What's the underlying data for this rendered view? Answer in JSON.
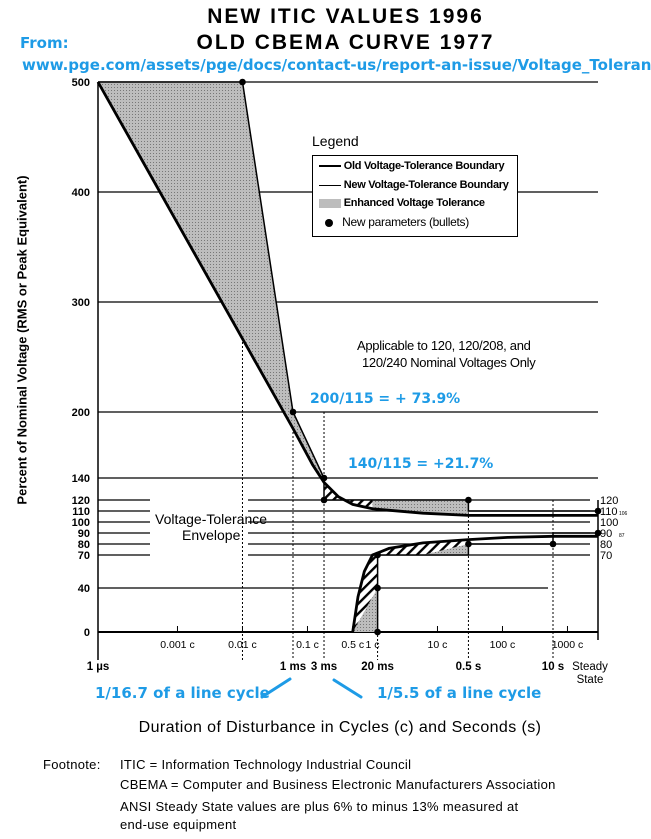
{
  "header": {
    "title_line1": "NEW ITIC VALUES 1996",
    "title_line2": "OLD CBEMA CURVE 1977",
    "from_label": "From:",
    "source_url": "www.pge.com/assets/pge/docs/contact-us/report-an-issue/Voltage_Tolerance"
  },
  "chart_data": {
    "type": "line",
    "title": "NEW ITIC VALUES 1996 / OLD CBEMA CURVE 1977",
    "xlabel": "Duration of Disturbance in Cycles (c) and Seconds (s)",
    "ylabel": "Percent of Nominal Voltage (RMS or Peak Equivalent)",
    "x_scale": "log",
    "ylim": [
      0,
      500
    ],
    "y_ticks": [
      0,
      40,
      70,
      80,
      90,
      100,
      110,
      120,
      140,
      200,
      300,
      400,
      500
    ],
    "right_ticks": [
      {
        "v": 120,
        "label": "120",
        "sub": ""
      },
      {
        "v": 110,
        "label": "110",
        "sub": "106"
      },
      {
        "v": 100,
        "label": "100",
        "sub": ""
      },
      {
        "v": 90,
        "label": "90",
        "sub": "87"
      },
      {
        "v": 80,
        "label": "80",
        "sub": ""
      },
      {
        "v": 70,
        "label": "70",
        "sub": ""
      }
    ],
    "time_ticks": [
      {
        "t": 1e-06,
        "label": "1 µs"
      },
      {
        "t": 0.001,
        "label": "1 ms"
      },
      {
        "t": 0.003,
        "label": "3 ms"
      },
      {
        "t": 0.02,
        "label": "20 ms"
      },
      {
        "t": 0.5,
        "label": "0.5 s"
      },
      {
        "t": 10,
        "label": "10 s"
      },
      {
        "t": "steady",
        "label": "Steady State"
      }
    ],
    "cycle_ticks": [
      {
        "t": 1.67e-05,
        "label": "0.001 c"
      },
      {
        "t": 0.000167,
        "label": "0.01 c"
      },
      {
        "t": 0.00167,
        "label": "0.1 c"
      },
      {
        "t": 0.0083,
        "label": "0.5 c"
      },
      {
        "t": 0.0167,
        "label": "1 c"
      },
      {
        "t": 0.167,
        "label": "10 c"
      },
      {
        "t": 1.67,
        "label": "100 c"
      },
      {
        "t": 16.7,
        "label": "1000 c"
      }
    ],
    "series": [
      {
        "name": "New Voltage-Tolerance Boundary",
        "id": "itic_upper",
        "points": [
          [
            1e-06,
            500
          ],
          [
            0.000167,
            500
          ],
          [
            0.001,
            200
          ],
          [
            0.003,
            140
          ],
          [
            0.003,
            120
          ],
          [
            0.5,
            120
          ],
          [
            0.5,
            110
          ],
          [
            "steady",
            110
          ]
        ]
      },
      {
        "name": "New Voltage-Tolerance Boundary",
        "id": "itic_lower",
        "points": [
          [
            0.02,
            0
          ],
          [
            0.02,
            70
          ],
          [
            0.5,
            70
          ],
          [
            0.5,
            80
          ],
          [
            10,
            80
          ],
          [
            10,
            90
          ],
          [
            "steady",
            90
          ]
        ]
      },
      {
        "name": "Old Voltage-Tolerance Boundary",
        "id": "cbema_upper",
        "points": [
          [
            1e-06,
            500
          ],
          [
            0.001,
            185
          ],
          [
            0.002,
            152
          ],
          [
            0.003,
            136
          ],
          [
            0.005,
            123
          ],
          [
            0.0083,
            116
          ],
          [
            0.0167,
            112
          ],
          [
            0.1,
            108
          ],
          [
            0.5,
            106
          ],
          [
            "steady",
            106
          ]
        ]
      },
      {
        "name": "Old Voltage-Tolerance Boundary",
        "id": "cbema_lower",
        "points": [
          [
            0.0083,
            0
          ],
          [
            0.01,
            32
          ],
          [
            0.0125,
            55
          ],
          [
            0.0167,
            70
          ],
          [
            0.03,
            76
          ],
          [
            0.1,
            81
          ],
          [
            0.5,
            84
          ],
          [
            2,
            86
          ],
          [
            10,
            87
          ],
          [
            "steady",
            87
          ]
        ]
      }
    ],
    "bullets": [
      [
        0.000167,
        500
      ],
      [
        0.001,
        200
      ],
      [
        0.003,
        140
      ],
      [
        0.003,
        120
      ],
      [
        0.5,
        120
      ],
      [
        "steady",
        110
      ],
      [
        0.02,
        70
      ],
      [
        0.02,
        40
      ],
      [
        0.02,
        0
      ],
      [
        0.5,
        80
      ],
      [
        10,
        80
      ],
      [
        "steady",
        90
      ]
    ],
    "legend": {
      "title": "Legend",
      "placement": "top-right",
      "items": [
        "Old Voltage-Tolerance Boundary",
        "New Voltage-Tolerance Boundary",
        "Enhanced Voltage Tolerance",
        "New parameters (bullets)"
      ]
    },
    "annotations": {
      "applicable_line1": "Applicable to 120, 120/208, and",
      "applicable_line2": "120/240 Nominal Voltages Only",
      "envelope_line1": "Voltage-Tolerance",
      "envelope_line2": "Envelope",
      "ratio_200": "200/115 = + 73.9%",
      "ratio_140": "140/115 = +21.7%",
      "cycle_1ms": "1/16.7 of a line cycle",
      "cycle_3ms": "1/5.5 of a line cycle"
    },
    "colors": {
      "annotation": "#1e9be6",
      "enhanced_fill": "#c8c8c8"
    }
  },
  "footnote": {
    "label": "Footnote:",
    "line1": "ITIC = Information Technology Industrial Council",
    "line2": "CBEMA = Computer and Business Electronic Manufacturers Association",
    "line3": "ANSI Steady State values are plus 6% to minus 13% measured at",
    "line4": "end-use equipment"
  }
}
